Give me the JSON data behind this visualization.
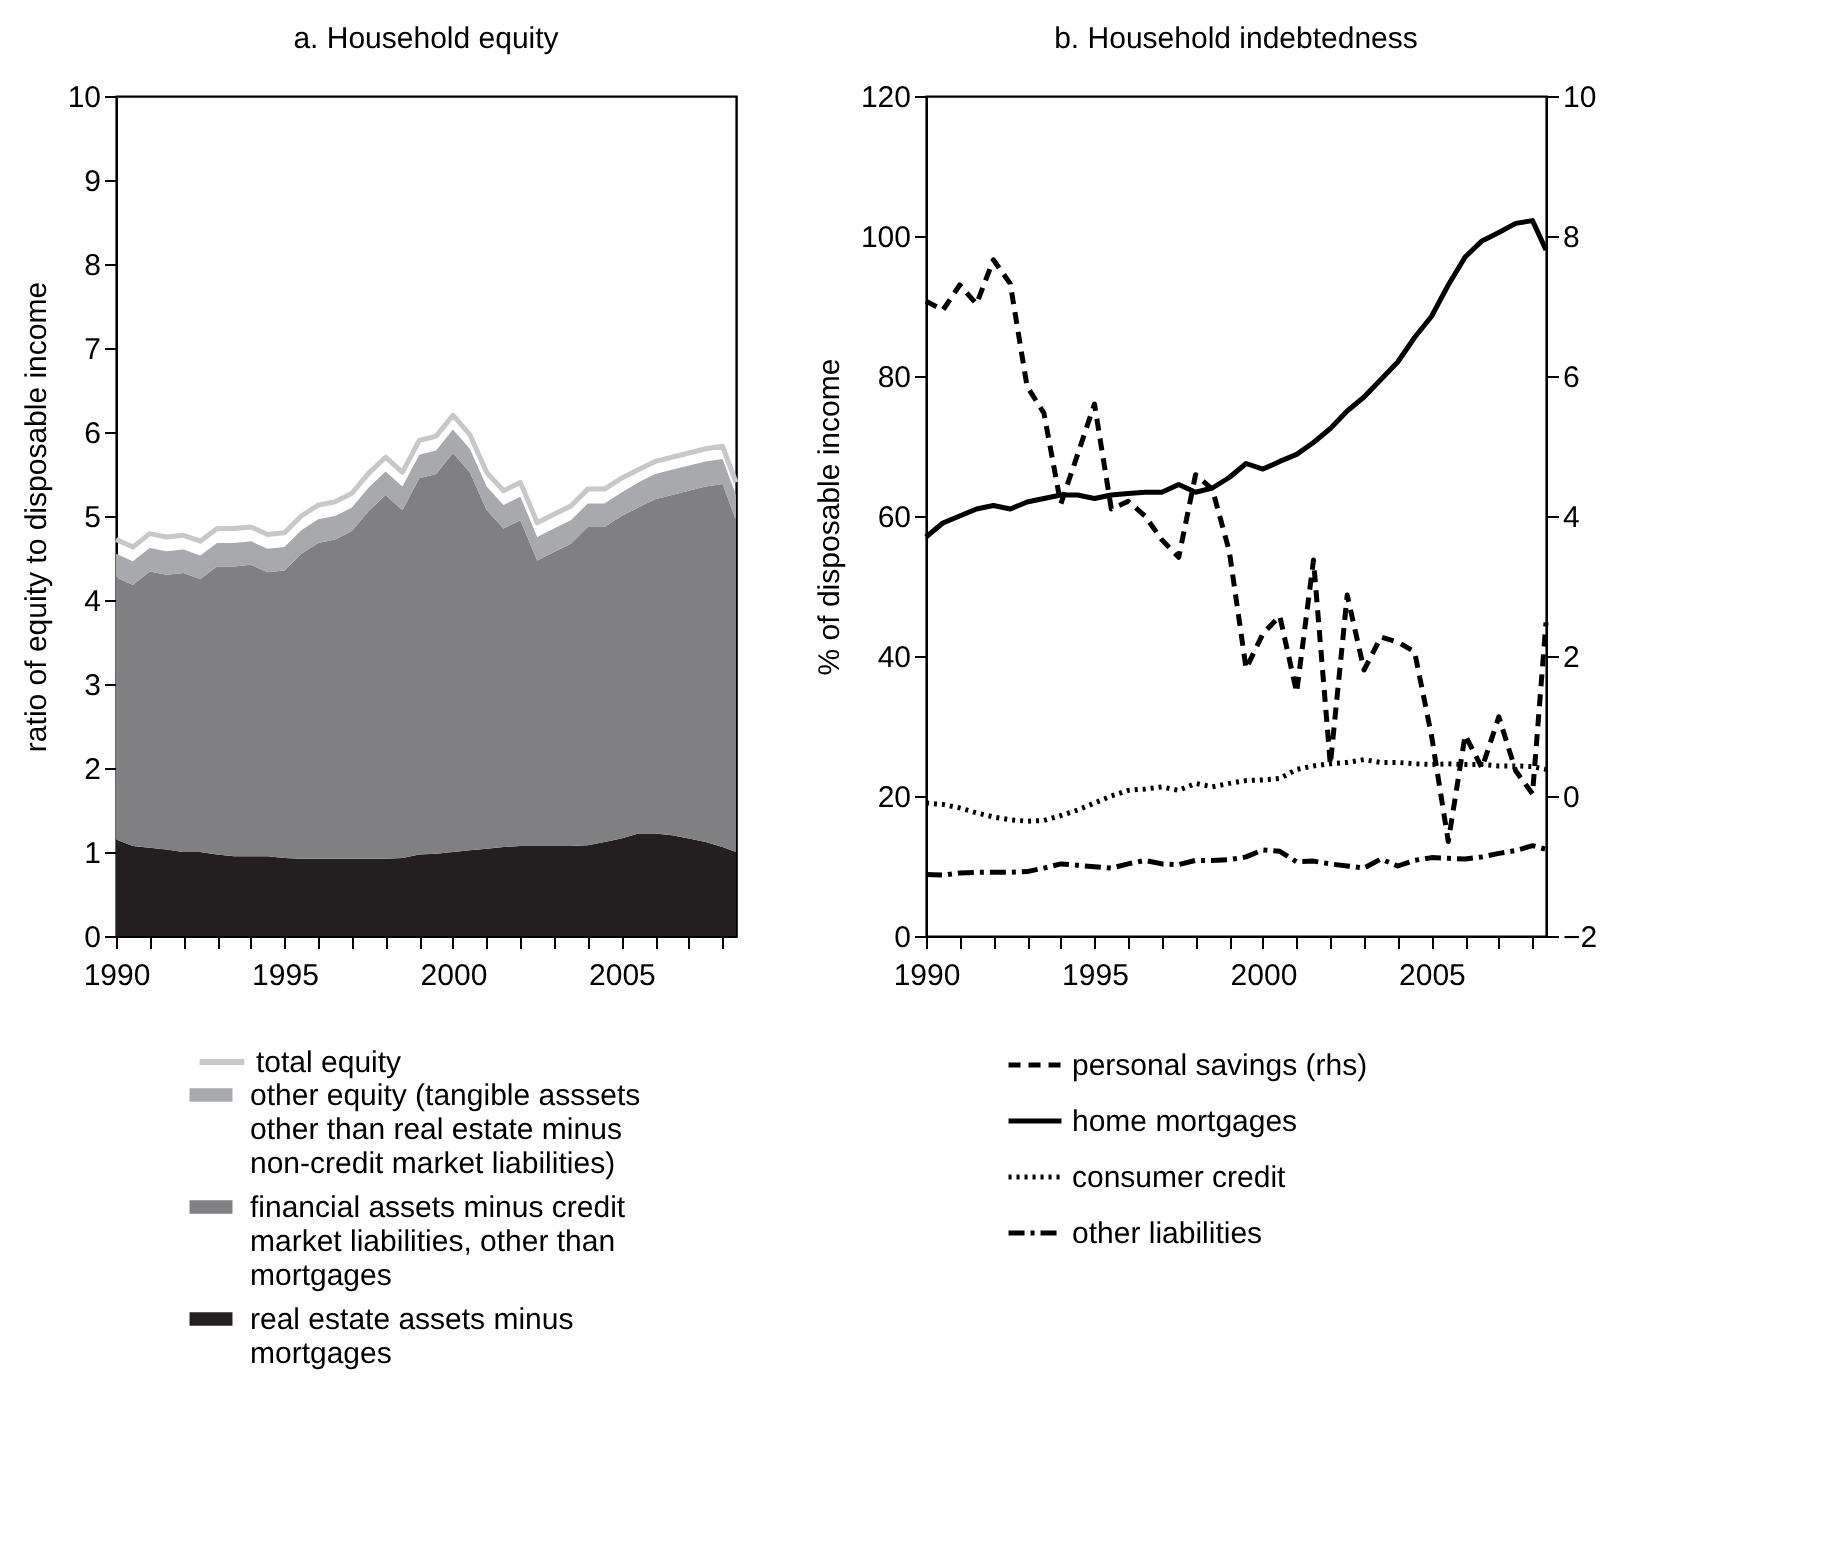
{
  "chart_data": [
    {
      "type": "area",
      "title": "a. Household equity",
      "ylabel": "ratio of equity to disposable income",
      "stacked": true,
      "legend": "bottom",
      "grid": false,
      "x": [
        1990,
        1990.5,
        1991,
        1991.5,
        1992,
        1992.5,
        1993,
        1993.5,
        1994,
        1994.5,
        1995,
        1995.5,
        1996,
        1996.5,
        1997,
        1997.5,
        1998,
        1998.5,
        1999,
        1999.5,
        2000,
        2000.5,
        2001,
        2001.5,
        2002,
        2002.5,
        2003,
        2003.5,
        2004,
        2004.5,
        2005,
        2005.5,
        2006,
        2006.5,
        2007,
        2007.5,
        2008,
        2008.4
      ],
      "xlim": [
        1990,
        2008.4
      ],
      "xticks": [
        1990,
        {
          "value": 1991,
          "label": null
        },
        {
          "value": 1992,
          "label": null
        },
        {
          "value": 1993,
          "label": null
        },
        {
          "value": 1994,
          "label": null
        },
        1995,
        {
          "value": 1996,
          "label": null
        },
        {
          "value": 1997,
          "label": null
        },
        {
          "value": 1998,
          "label": null
        },
        {
          "value": 1999,
          "label": null
        },
        2000,
        {
          "value": 2001,
          "label": null
        },
        {
          "value": 2002,
          "label": null
        },
        {
          "value": 2003,
          "label": null
        },
        {
          "value": 2004,
          "label": null
        },
        2005,
        {
          "value": 2006,
          "label": null
        },
        {
          "value": 2007,
          "label": null
        },
        {
          "value": 2008,
          "label": null
        }
      ],
      "ylim": [
        0,
        10
      ],
      "yticks": [
        0,
        1,
        2,
        3,
        4,
        5,
        6,
        7,
        8,
        9,
        10
      ],
      "series": [
        {
          "name": "real estate assets minus mortgages",
          "type": "area",
          "color": "#231f20",
          "values": [
            1.15,
            1.07,
            1.05,
            1.03,
            1.0,
            1.0,
            0.97,
            0.95,
            0.95,
            0.95,
            0.93,
            0.92,
            0.92,
            0.92,
            0.92,
            0.92,
            0.92,
            0.93,
            0.97,
            0.98,
            1.0,
            1.02,
            1.04,
            1.06,
            1.07,
            1.07,
            1.07,
            1.07,
            1.08,
            1.12,
            1.16,
            1.22,
            1.22,
            1.2,
            1.16,
            1.12,
            1.06,
            1.0
          ]
        },
        {
          "name": "financial assets minus credit market liabilities, other than mortgages",
          "type": "area",
          "color": "#808082",
          "values": [
            3.12,
            3.11,
            3.29,
            3.27,
            3.32,
            3.25,
            3.43,
            3.45,
            3.47,
            3.38,
            3.42,
            3.63,
            3.76,
            3.8,
            3.9,
            4.14,
            4.33,
            4.14,
            4.48,
            4.52,
            4.75,
            4.5,
            4.03,
            3.79,
            3.88,
            3.4,
            3.5,
            3.6,
            3.79,
            3.75,
            3.84,
            3.88,
            3.98,
            4.05,
            4.14,
            4.23,
            4.32,
            3.95
          ]
        },
        {
          "name": "other equity (tangible asssets other than real estate minus non-credit market liabilities)",
          "type": "area",
          "color": "#a7a9ac",
          "values": [
            0.28,
            0.28,
            0.28,
            0.28,
            0.28,
            0.28,
            0.28,
            0.28,
            0.28,
            0.28,
            0.28,
            0.28,
            0.28,
            0.28,
            0.28,
            0.28,
            0.28,
            0.28,
            0.28,
            0.28,
            0.28,
            0.28,
            0.28,
            0.28,
            0.28,
            0.28,
            0.28,
            0.28,
            0.28,
            0.28,
            0.28,
            0.3,
            0.3,
            0.3,
            0.3,
            0.3,
            0.3,
            0.3
          ]
        },
        {
          "name": "total equity",
          "type": "line",
          "color": "#c8c8c8",
          "values": [
            4.72,
            4.63,
            4.79,
            4.75,
            4.77,
            4.7,
            4.85,
            4.85,
            4.87,
            4.78,
            4.8,
            5.0,
            5.13,
            5.17,
            5.27,
            5.51,
            5.7,
            5.52,
            5.9,
            5.95,
            6.2,
            5.97,
            5.52,
            5.3,
            5.4,
            4.92,
            5.02,
            5.12,
            5.32,
            5.32,
            5.45,
            5.55,
            5.65,
            5.7,
            5.75,
            5.8,
            5.83,
            5.4
          ]
        }
      ]
    },
    {
      "type": "line",
      "title": "b. Household indebtedness",
      "ylabel": "% of disposable income",
      "legend": "bottom",
      "grid": false,
      "x": [
        1990,
        1990.5,
        1991,
        1991.5,
        1992,
        1992.5,
        1993,
        1993.5,
        1994,
        1994.5,
        1995,
        1995.5,
        1996,
        1996.5,
        1997,
        1997.5,
        1998,
        1998.5,
        1999,
        1999.5,
        2000,
        2000.5,
        2001,
        2001.5,
        2002,
        2002.5,
        2003,
        2003.5,
        2004,
        2004.5,
        2005,
        2005.5,
        2006,
        2006.5,
        2007,
        2007.5,
        2008,
        2008.4
      ],
      "xlim": [
        1990,
        2008.4
      ],
      "xticks": [
        1990,
        {
          "value": 1991,
          "label": null
        },
        {
          "value": 1992,
          "label": null
        },
        {
          "value": 1993,
          "label": null
        },
        {
          "value": 1994,
          "label": null
        },
        1995,
        {
          "value": 1996,
          "label": null
        },
        {
          "value": 1997,
          "label": null
        },
        {
          "value": 1998,
          "label": null
        },
        {
          "value": 1999,
          "label": null
        },
        2000,
        {
          "value": 2001,
          "label": null
        },
        {
          "value": 2002,
          "label": null
        },
        {
          "value": 2003,
          "label": null
        },
        {
          "value": 2004,
          "label": null
        },
        2005,
        {
          "value": 2006,
          "label": null
        },
        {
          "value": 2007,
          "label": null
        },
        {
          "value": 2008,
          "label": null
        }
      ],
      "ylim": [
        0,
        120
      ],
      "yticks": [
        0,
        20,
        40,
        60,
        80,
        100,
        120
      ],
      "y2lim": [
        -2,
        10
      ],
      "y2ticks": [
        {
          "value": -2,
          "label": "−2"
        },
        0,
        2,
        4,
        6,
        8,
        10
      ],
      "series": [
        {
          "name": "personal savings (rhs)",
          "axis": "y2",
          "color": "#000000",
          "line_style": "dashed",
          "values": [
            7.07,
            6.94,
            7.3,
            7.03,
            7.66,
            7.32,
            5.85,
            5.47,
            4.17,
            4.88,
            5.6,
            4.1,
            4.21,
            4.0,
            3.66,
            3.41,
            4.59,
            4.38,
            3.5,
            1.82,
            2.32,
            2.57,
            1.48,
            3.37,
            0.45,
            2.87,
            1.8,
            2.27,
            2.2,
            2.06,
            0.87,
            -0.65,
            0.87,
            0.4,
            1.13,
            0.36,
            0.03,
            2.48
          ]
        },
        {
          "name": "home mortgages",
          "color": "#000000",
          "line_style": "solid",
          "values": [
            57,
            59,
            60,
            61,
            61.5,
            61,
            62,
            62.5,
            63,
            63,
            62.5,
            63,
            63.2,
            63.4,
            63.4,
            64.5,
            63.4,
            64,
            65.5,
            67.5,
            66.7,
            67.8,
            68.8,
            70.5,
            72.5,
            75,
            77,
            79.5,
            82,
            85.5,
            88.5,
            93,
            97,
            99.3,
            100.5,
            101.8,
            102.2,
            98
          ]
        },
        {
          "name": "consumer credit",
          "color": "#000000",
          "line_style": "dotted",
          "values": [
            19,
            18.8,
            18.3,
            17.6,
            17,
            16.6,
            16.4,
            16.5,
            17.2,
            18,
            19,
            20,
            20.8,
            21,
            21.3,
            20.8,
            21.8,
            21.3,
            21.8,
            22.2,
            22.3,
            22.5,
            23.8,
            24.3,
            24.6,
            24.8,
            25.2,
            24.8,
            24.8,
            24.6,
            24.5,
            24.6,
            24.5,
            24.5,
            24.3,
            24.3,
            24.2,
            23.8
          ]
        },
        {
          "name": "other liabilities",
          "color": "#000000",
          "line_style": "dashdot",
          "values": [
            8.8,
            8.7,
            9.0,
            9.1,
            9.1,
            9.1,
            9.2,
            9.7,
            10.3,
            10.1,
            9.9,
            9.7,
            10.3,
            10.8,
            10.3,
            10.2,
            10.8,
            10.8,
            10.9,
            11.3,
            12.3,
            12.1,
            10.6,
            10.7,
            10.3,
            10.0,
            9.7,
            11.0,
            10.0,
            10.8,
            11.2,
            11.1,
            11.0,
            11.3,
            11.8,
            12.2,
            12.9,
            12.4
          ]
        }
      ]
    }
  ]
}
